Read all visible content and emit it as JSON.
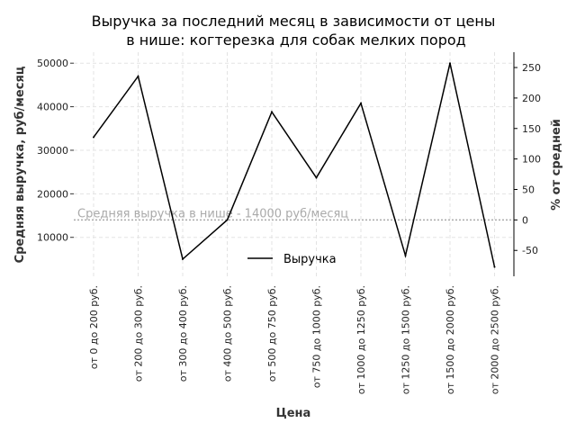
{
  "chart_data": {
    "type": "line",
    "title_line1": "Выручка за последний месяц в зависимости от цены",
    "title_line2": "в нише: когтерезка для собак мелких пород",
    "xlabel": "Цена",
    "ylabel": "Средняя выручка, руб/месяц",
    "y2label": "% от средней",
    "categories": [
      "от 0 до 200 руб.",
      "от 200 до 300 руб.",
      "от 300 до 400 руб.",
      "от 400 до 500 руб.",
      "от 500 до 750 руб.",
      "от 750 до 1000 руб.",
      "от 1000 до 1250 руб.",
      "от 1250 до 1500 руб.",
      "от 1500 до 2000 руб.",
      "от 2000 до 2500 руб."
    ],
    "series": [
      {
        "name": "Выручка",
        "color": "#000000",
        "values": [
          33000,
          47000,
          5000,
          14000,
          38800,
          23700,
          40800,
          5800,
          50000,
          3200
        ]
      }
    ],
    "yticks": [
      10000,
      20000,
      30000,
      40000,
      50000
    ],
    "ylim": [
      0,
      52500
    ],
    "y2ticks": [
      -50,
      0,
      50,
      100,
      150,
      200,
      250
    ],
    "average": {
      "value": 14000,
      "label": "Средняя выручка в нише - 14000 руб/месяц",
      "color": "#aaaaaa"
    },
    "grid": true,
    "legend_position": "lower-center"
  }
}
